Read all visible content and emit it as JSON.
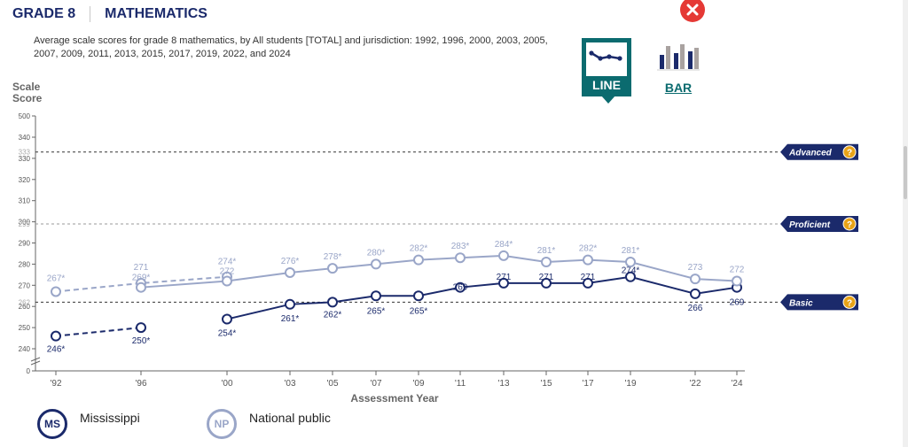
{
  "header": {
    "grade": "GRADE 8",
    "subject": "MATHEMATICS"
  },
  "subtitle": "Average scale scores for grade 8 mathematics, by All students [TOTAL] and jurisdiction: 1992, 1996, 2000, 2003, 2005, 2007, 2009, 2011, 2013, 2015, 2017, 2019, 2022, and 2024",
  "view_toggle": {
    "line_label": "LINE",
    "bar_label": "BAR",
    "selected": "LINE"
  },
  "icons": {
    "close": "close-icon",
    "line_view": "line-chart-icon",
    "bar_view": "bar-chart-icon",
    "help": "help-icon"
  },
  "colors": {
    "mississippi": "#1b2a6b",
    "national_public": "#9aa6c8",
    "teal": "#0b6b6f",
    "close_red": "#e53935",
    "achievement_badge": "#1b2a6b",
    "help_badge": "#e8a317"
  },
  "chart_data": {
    "type": "line",
    "ylabel": "Scale Score",
    "xlabel": "Assessment Year",
    "ylim": [
      0,
      500
    ],
    "y_axis_break": [
      0,
      235
    ],
    "y_ticks": [
      0,
      240,
      250,
      260,
      270,
      280,
      290,
      300,
      310,
      320,
      330,
      340,
      500
    ],
    "x": [
      "'92",
      "'96",
      "'00",
      "'03",
      "'05",
      "'07",
      "'09",
      "'11",
      "'13",
      "'15",
      "'17",
      "'19",
      "'22",
      "'24"
    ],
    "achievement_levels": [
      {
        "name": "Advanced",
        "value": 333,
        "line": "dark"
      },
      {
        "name": "Proficient",
        "value": 299,
        "line": "light"
      },
      {
        "name": "Basic",
        "value": 262,
        "line": "dark"
      }
    ],
    "series": [
      {
        "name": "Mississippi",
        "abbr": "MS",
        "accommodations_not_permitted": [
          {
            "x": "'92",
            "y": 246,
            "label": "246*"
          },
          {
            "x": "'96",
            "y": 250,
            "label": "250*"
          }
        ],
        "values": [
          {
            "x": "'00",
            "y": 254,
            "label": "254*"
          },
          {
            "x": "'03",
            "y": 261,
            "label": "261*"
          },
          {
            "x": "'05",
            "y": 262,
            "label": "262*"
          },
          {
            "x": "'07",
            "y": 265,
            "label": "265*"
          },
          {
            "x": "'09",
            "y": 265,
            "label": "265*"
          },
          {
            "x": "'11",
            "y": 269,
            "label": "269"
          },
          {
            "x": "'13",
            "y": 271,
            "label": "271"
          },
          {
            "x": "'15",
            "y": 271,
            "label": "271"
          },
          {
            "x": "'17",
            "y": 271,
            "label": "271"
          },
          {
            "x": "'19",
            "y": 274,
            "label": "274*"
          },
          {
            "x": "'22",
            "y": 266,
            "label": "266"
          },
          {
            "x": "'24",
            "y": 269,
            "label": "269"
          }
        ]
      },
      {
        "name": "National public",
        "abbr": "NP",
        "accommodations_not_permitted": [
          {
            "x": "'92",
            "y": 267,
            "label": "267*"
          },
          {
            "x": "'96",
            "y": 271,
            "label": "271"
          },
          {
            "x": "'00",
            "y": 274,
            "label": "274*"
          }
        ],
        "values": [
          {
            "x": "'96",
            "y": 269,
            "label": "269*"
          },
          {
            "x": "'00",
            "y": 272,
            "label": "272"
          },
          {
            "x": "'03",
            "y": 276,
            "label": "276*"
          },
          {
            "x": "'05",
            "y": 278,
            "label": "278*"
          },
          {
            "x": "'07",
            "y": 280,
            "label": "280*"
          },
          {
            "x": "'09",
            "y": 282,
            "label": "282*"
          },
          {
            "x": "'11",
            "y": 283,
            "label": "283*"
          },
          {
            "x": "'13",
            "y": 284,
            "label": "284*"
          },
          {
            "x": "'15",
            "y": 281,
            "label": "281*"
          },
          {
            "x": "'17",
            "y": 282,
            "label": "282*"
          },
          {
            "x": "'19",
            "y": 281,
            "label": "281*"
          },
          {
            "x": "'22",
            "y": 273,
            "label": "273"
          },
          {
            "x": "'24",
            "y": 272,
            "label": "272"
          }
        ]
      }
    ]
  },
  "legend": [
    {
      "abbr": "MS",
      "name": "Mississippi"
    },
    {
      "abbr": "NP",
      "name": "National public"
    }
  ]
}
